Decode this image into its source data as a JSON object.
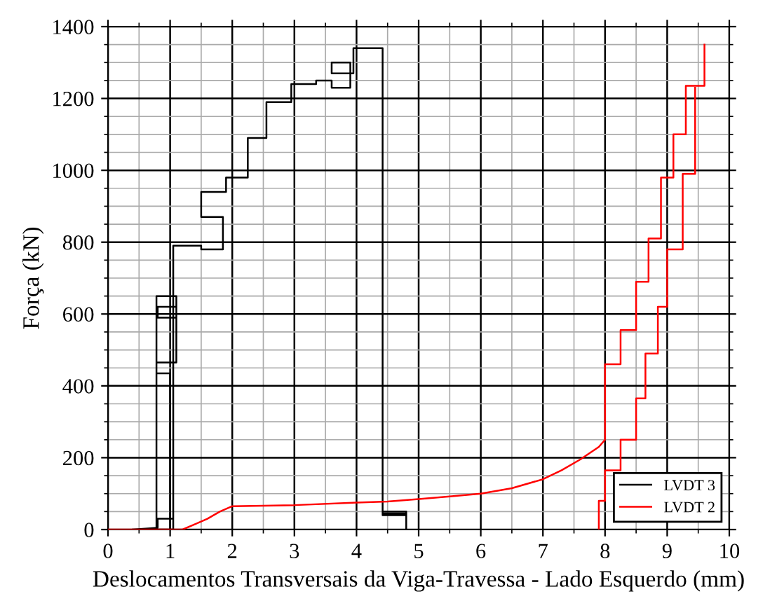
{
  "chart_data": {
    "type": "line",
    "xlabel": "Deslocamentos Transversais da Viga-Travessa - Lado Esquerdo (mm)",
    "ylabel": "Força (kN)",
    "xlim": [
      0,
      10
    ],
    "ylim": [
      0,
      1400
    ],
    "xticks": [
      0,
      1,
      2,
      3,
      4,
      5,
      6,
      7,
      8,
      9,
      10
    ],
    "yticks": [
      0,
      200,
      400,
      600,
      800,
      1000,
      1200,
      1400
    ],
    "grid": true,
    "legend": "bottom right",
    "line_style": "solid",
    "marker": "none",
    "series": [
      {
        "name": "LVDT 3",
        "color": "#000000",
        "x": [
          0.4,
          0.8,
          0.8,
          1.05,
          1.05,
          0.78,
          0.78,
          1.1,
          1.1,
          0.8,
          0.8,
          1.1,
          1.1,
          0.78,
          0.78,
          1.0,
          1.0,
          1.05,
          1.05,
          1.5,
          1.5,
          1.85,
          1.85,
          1.5,
          1.5,
          1.9,
          1.9,
          2.25,
          2.25,
          2.55,
          2.55,
          2.95,
          2.95,
          3.35,
          3.35,
          3.6,
          3.6,
          3.9,
          3.9,
          3.6,
          3.6,
          3.95,
          3.95,
          4.42,
          4.42,
          4.8,
          4.8,
          4.42,
          4.42,
          4.8,
          4.8
        ],
        "values": [
          0,
          5,
          30,
          30,
          0,
          0,
          650,
          650,
          590,
          590,
          620,
          620,
          465,
          465,
          435,
          435,
          0,
          0,
          790,
          790,
          780,
          780,
          870,
          870,
          940,
          940,
          980,
          980,
          1090,
          1090,
          1190,
          1190,
          1240,
          1240,
          1250,
          1250,
          1230,
          1230,
          1300,
          1300,
          1270,
          1270,
          1340,
          1340,
          40,
          40,
          50,
          50,
          45,
          45,
          0
        ]
      },
      {
        "name": "LVDT 2",
        "color": "#ff0000",
        "x": [
          0,
          1.2,
          1.4,
          1.6,
          1.8,
          2.0,
          3,
          4,
          4.5,
          5,
          5.5,
          6,
          6.5,
          7,
          7.3,
          7.6,
          7.9,
          8.0,
          8.0,
          8.25,
          8.25,
          8.5,
          8.5,
          8.7,
          8.7,
          8.9,
          8.9,
          9.1,
          9.1,
          9.3,
          9.3,
          9.6,
          9.6
        ],
        "values": [
          0,
          0,
          15,
          30,
          50,
          65,
          68,
          75,
          78,
          85,
          92,
          100,
          115,
          140,
          165,
          195,
          230,
          250,
          460,
          460,
          555,
          555,
          690,
          690,
          810,
          810,
          980,
          980,
          1100,
          1100,
          1235,
          1235,
          1350
        ]
      },
      {
        "color": "#ff0000",
        "x": [
          7.9,
          7.9,
          8.0,
          8.0,
          8.25,
          8.25,
          8.5,
          8.5,
          8.65,
          8.65,
          8.85,
          8.85,
          9.0,
          9.0,
          9.25,
          9.25,
          9.45,
          9.45
        ],
        "values": [
          0,
          80,
          80,
          165,
          165,
          250,
          250,
          365,
          365,
          490,
          490,
          620,
          620,
          780,
          780,
          990,
          990,
          1230
        ]
      }
    ]
  }
}
